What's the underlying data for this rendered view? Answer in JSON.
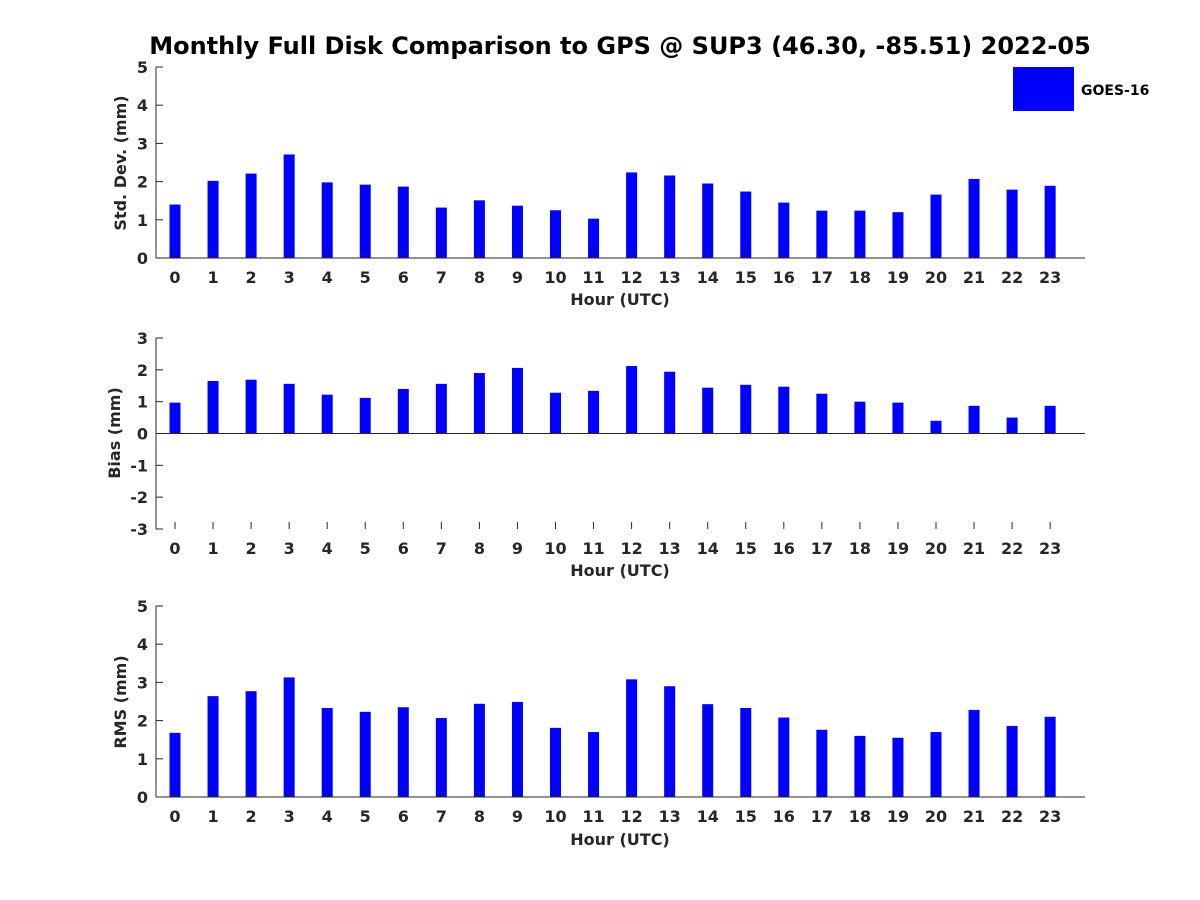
{
  "chart_data": [
    {
      "type": "bar",
      "title": "Monthly Full Disk Comparison to GPS @ SUP3 (46.30, -85.51) 2022-05",
      "xlabel": "Hour (UTC)",
      "ylabel": "Std. Dev. (mm)",
      "ylim": [
        0,
        5
      ],
      "yticks": [
        "0",
        "1",
        "2",
        "3",
        "4",
        "5"
      ],
      "categories": [
        "0",
        "1",
        "2",
        "3",
        "4",
        "5",
        "6",
        "7",
        "8",
        "9",
        "10",
        "11",
        "12",
        "13",
        "14",
        "15",
        "16",
        "17",
        "18",
        "19",
        "20",
        "21",
        "22",
        "23"
      ],
      "series": [
        {
          "name": "GOES-16",
          "color": "#0000ff",
          "values": [
            1.4,
            2.02,
            2.21,
            2.71,
            1.98,
            1.92,
            1.87,
            1.32,
            1.51,
            1.37,
            1.25,
            1.03,
            2.24,
            2.16,
            1.95,
            1.74,
            1.45,
            1.24,
            1.24,
            1.2,
            1.66,
            2.07,
            1.79,
            1.89
          ]
        }
      ],
      "legend": {
        "position": "top-right",
        "entries": [
          "GOES-16"
        ]
      },
      "grid": false
    },
    {
      "type": "bar",
      "xlabel": "Hour (UTC)",
      "ylabel": "Bias (mm)",
      "ylim": [
        -3,
        3
      ],
      "yticks": [
        "-3",
        "-2",
        "-1",
        "0",
        "1",
        "2",
        "3"
      ],
      "categories": [
        "0",
        "1",
        "2",
        "3",
        "4",
        "5",
        "6",
        "7",
        "8",
        "9",
        "10",
        "11",
        "12",
        "13",
        "14",
        "15",
        "16",
        "17",
        "18",
        "19",
        "20",
        "21",
        "22",
        "23"
      ],
      "series": [
        {
          "name": "GOES-16",
          "color": "#0000ff",
          "values": [
            0.97,
            1.65,
            1.69,
            1.56,
            1.22,
            1.12,
            1.4,
            1.56,
            1.9,
            2.06,
            1.28,
            1.34,
            2.12,
            1.94,
            1.44,
            1.53,
            1.47,
            1.25,
            1.0,
            0.97,
            0.4,
            0.87,
            0.5,
            0.87
          ]
        }
      ],
      "grid": false
    },
    {
      "type": "bar",
      "xlabel": "Hour (UTC)",
      "ylabel": "RMS (mm)",
      "ylim": [
        0,
        5
      ],
      "yticks": [
        "0",
        "1",
        "2",
        "3",
        "4",
        "5"
      ],
      "categories": [
        "0",
        "1",
        "2",
        "3",
        "4",
        "5",
        "6",
        "7",
        "8",
        "9",
        "10",
        "11",
        "12",
        "13",
        "14",
        "15",
        "16",
        "17",
        "18",
        "19",
        "20",
        "21",
        "22",
        "23"
      ],
      "series": [
        {
          "name": "GOES-16",
          "color": "#0000ff",
          "values": [
            1.68,
            2.64,
            2.77,
            3.13,
            2.33,
            2.23,
            2.35,
            2.07,
            2.44,
            2.49,
            1.81,
            1.7,
            3.08,
            2.9,
            2.43,
            2.33,
            2.08,
            1.76,
            1.6,
            1.55,
            1.7,
            2.28,
            1.86,
            2.1
          ]
        }
      ],
      "grid": false
    }
  ]
}
